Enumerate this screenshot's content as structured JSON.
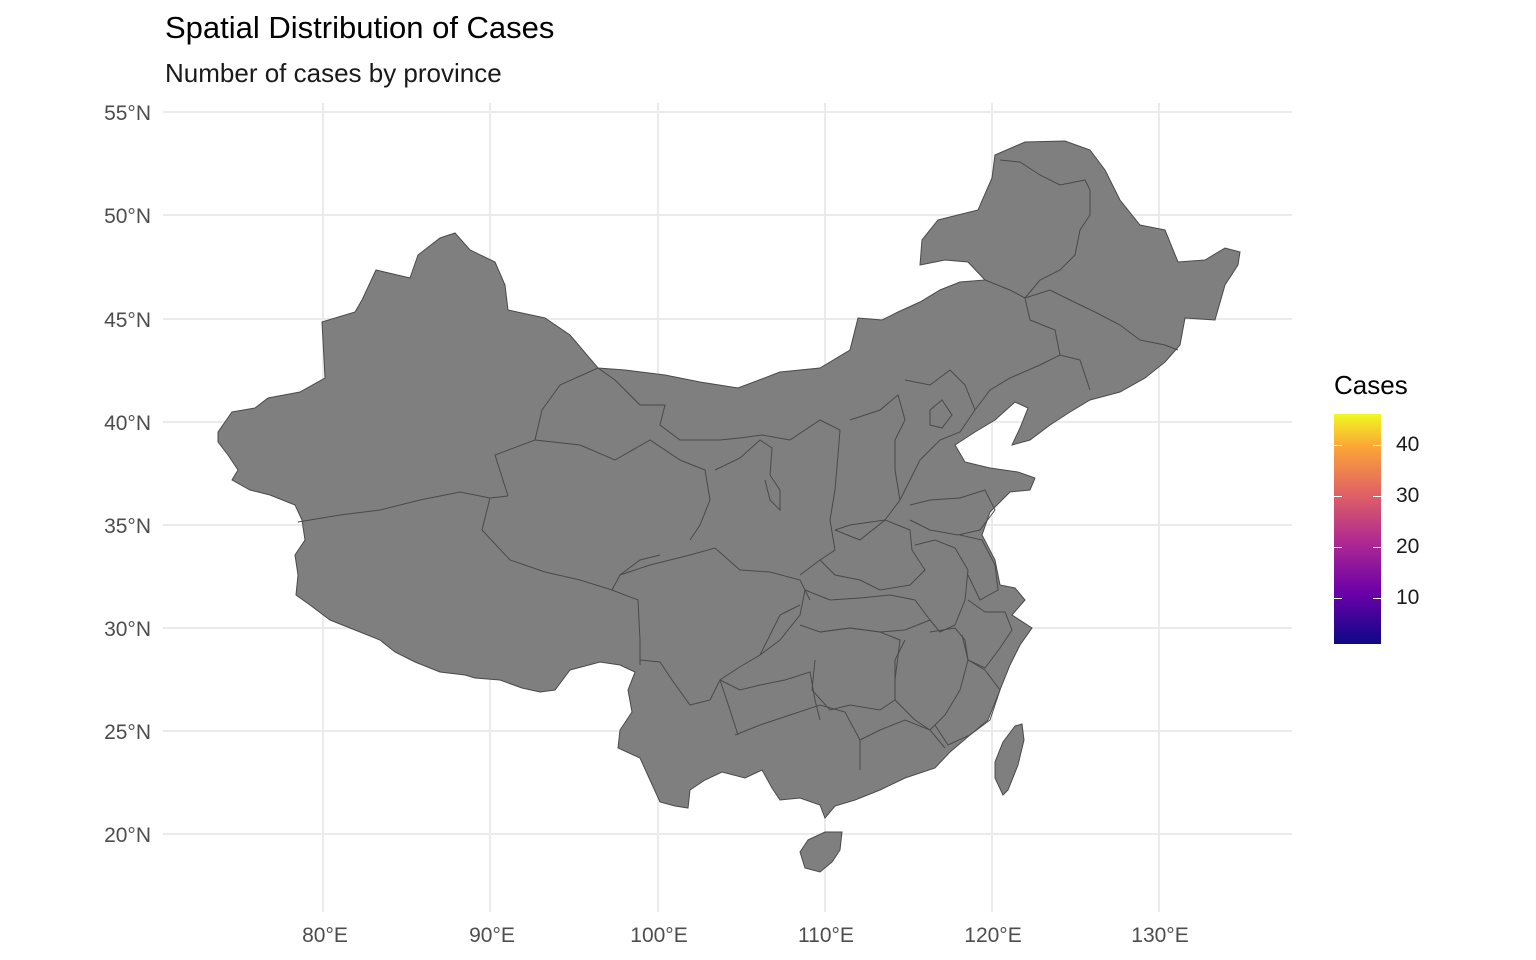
{
  "title": "Spatial Distribution of Cases",
  "subtitle": "Number of cases by province",
  "map": {
    "fill_color": "#7f7f7f",
    "border_color": "#4a4a4a",
    "grid_color": "#ebebeb",
    "lon_ticks": [
      "80°E",
      "90°E",
      "100°E",
      "110°E",
      "120°E",
      "130°E"
    ],
    "lat_ticks": [
      "55°N",
      "50°N",
      "45°N",
      "40°N",
      "35°N",
      "30°N",
      "25°N",
      "20°N"
    ]
  },
  "legend": {
    "title": "Cases",
    "palette": "plasma",
    "range": [
      0,
      47
    ],
    "ticks": [
      "40",
      "30",
      "20",
      "10"
    ]
  }
}
